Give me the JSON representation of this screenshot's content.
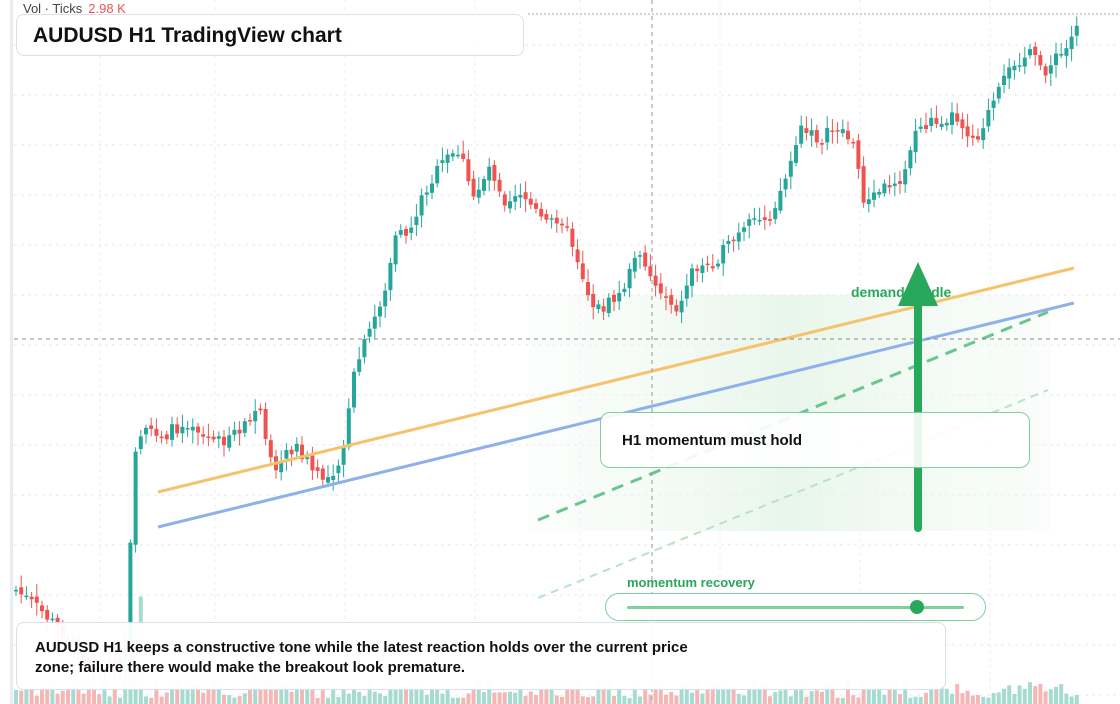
{
  "chart": {
    "title": "AUDUSD H1 TradingView chart",
    "volume_label": "Vol · Ticks",
    "volume_value": "2.98 K",
    "colors": {
      "up": "#26a69a",
      "down": "#ef5350",
      "ma_fast": "#f6c26b",
      "ma_slow": "#8fb0ea",
      "accent": "#27a85a"
    }
  },
  "annotations": {
    "demand_label": "demand hurdle",
    "momentum_callout": "H1 momentum must hold",
    "momentum_recovery_label": "momentum recovery",
    "momentum_recovery_level": 0.86,
    "summary": "AUDUSD H1 keeps a constructive tone while the latest reaction holds over the current price zone; failure there would make the breakout look premature."
  }
}
